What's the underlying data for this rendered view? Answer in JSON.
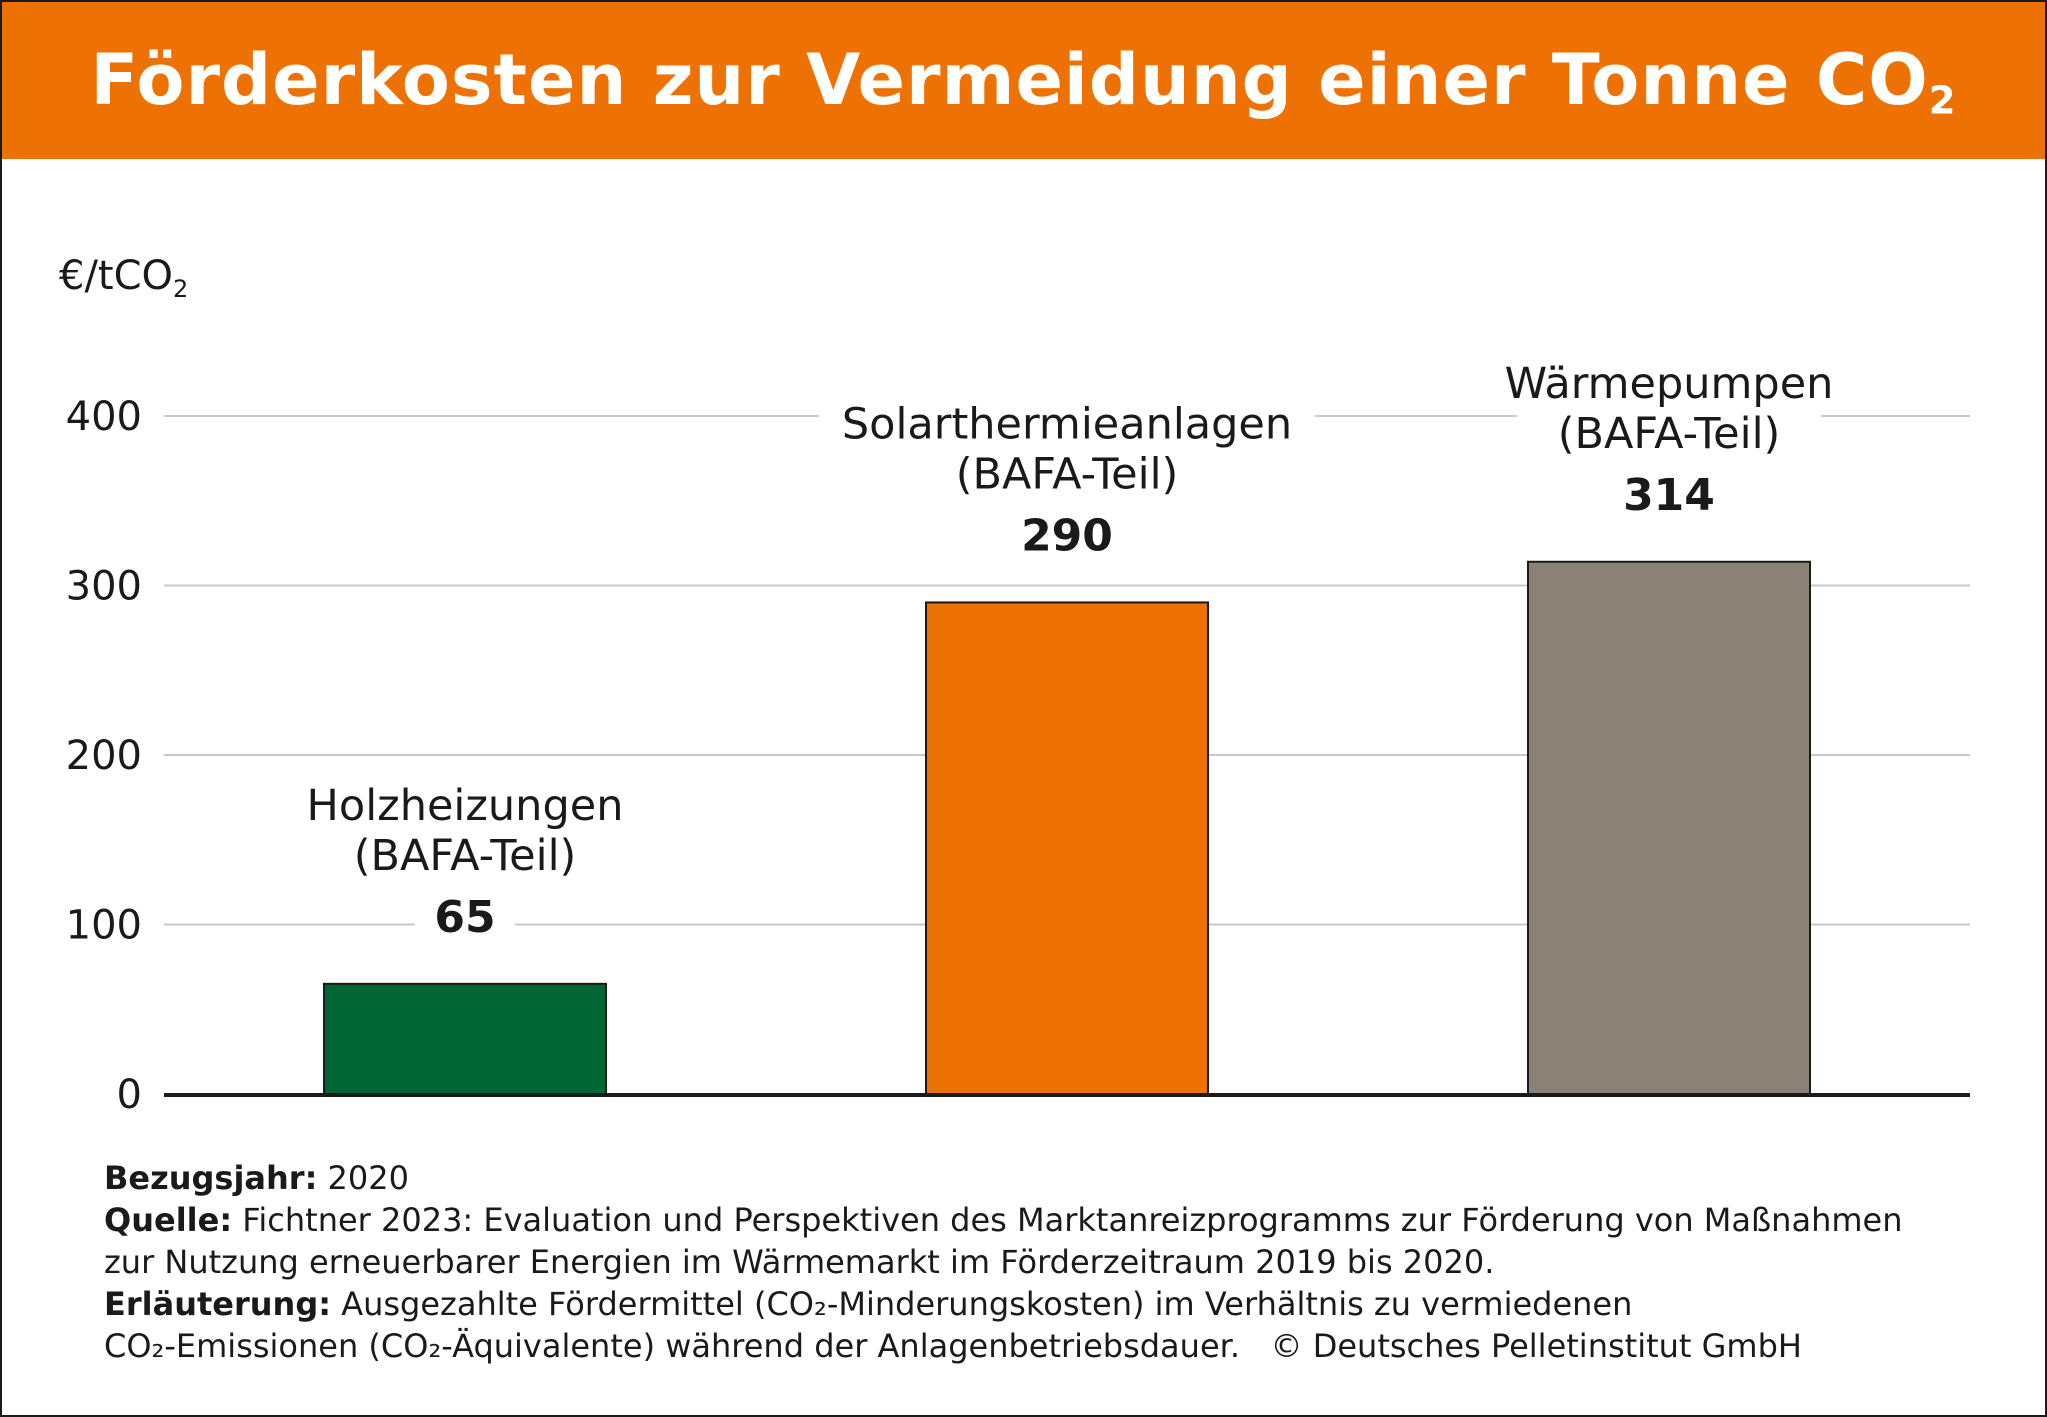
{
  "header": {
    "title_main": "Förderkosten zur Vermeidung einer Tonne CO",
    "title_sub": "2"
  },
  "colors": {
    "header_bg": "#ee7203",
    "grid": "#c8c8c8",
    "axis": "#1a1a1a"
  },
  "chart_data": {
    "type": "bar",
    "title": "Förderkosten zur Vermeidung einer Tonne CO2",
    "ylabel_main": "€/tCO",
    "ylabel_sub": "2",
    "xlabel": "",
    "ylim": [
      0,
      400
    ],
    "yticks": [
      0,
      100,
      200,
      300,
      400
    ],
    "grid": true,
    "bars": [
      {
        "label_lines": [
          "Holzheizungen",
          "(BAFA-Teil)"
        ],
        "value": 65,
        "value_label": "65",
        "color": "#006633"
      },
      {
        "label_lines": [
          "Solarthermieanlagen",
          "(BAFA-Teil)"
        ],
        "value": 290,
        "value_label": "290",
        "color": "#ee7203"
      },
      {
        "label_lines": [
          "Wärmepumpen",
          "(BAFA-Teil)"
        ],
        "value": 314,
        "value_label": "314",
        "color": "#8a8274"
      }
    ]
  },
  "footer": {
    "bezugsjahr_label": "Bezugsjahr:",
    "bezugsjahr_value": "2020",
    "quelle_label": "Quelle:",
    "quelle_line1": "Fichtner 2023: Evaluation und Perspektiven des Marktanreizprogramms zur Förderung von Maßnahmen",
    "quelle_line2": "zur Nutzung erneuerbarer Energien im Wärmemarkt im Förderzeitraum 2019 bis 2020.",
    "erlaeuterung_label": "Erläuterung:",
    "erlaeuterung_line1": "Ausgezahlte Fördermittel (CO₂-Minderungskosten) im Verhältnis zu vermiedenen",
    "erlaeuterung_line2": "CO₂-Emissionen (CO₂-Äquivalente) während der Anlagenbetriebsdauer.",
    "copyright": "© Deutsches Pelletinstitut GmbH"
  }
}
